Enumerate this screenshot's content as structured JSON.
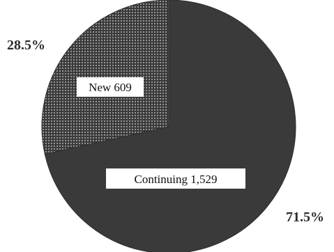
{
  "chart_data": {
    "type": "pie",
    "title": "",
    "slices": [
      {
        "label": "New 609",
        "category": "New",
        "count": 609,
        "percent": 28.5,
        "percent_label": "28.5%",
        "color": "#3a3a3a",
        "pattern": "dotted"
      },
      {
        "label": "Continuing 1,529",
        "category": "Continuing",
        "count": 1529,
        "percent": 71.5,
        "percent_label": "71.5%",
        "color": "#3a3a3a",
        "pattern": "solid"
      }
    ],
    "legend": "none"
  }
}
